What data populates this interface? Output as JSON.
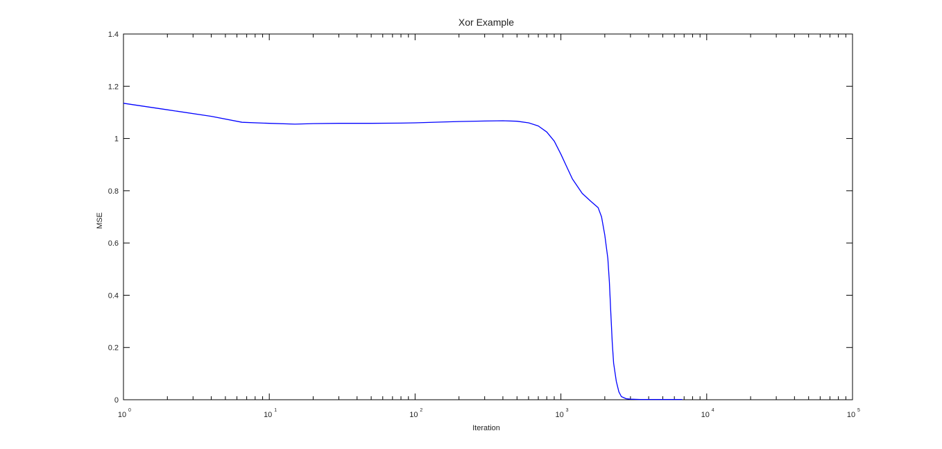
{
  "chart_data": {
    "type": "line",
    "title": "Xor Example",
    "xlabel": "Iteration",
    "ylabel": "MSE",
    "xscale": "log",
    "xlim": [
      1,
      100000
    ],
    "ylim": [
      0,
      1.4
    ],
    "grid": false,
    "legend": "none",
    "x_ticks": [
      {
        "base": "10",
        "exp": "0",
        "value": 1
      },
      {
        "base": "10",
        "exp": "1",
        "value": 10
      },
      {
        "base": "10",
        "exp": "2",
        "value": 100
      },
      {
        "base": "10",
        "exp": "3",
        "value": 1000
      },
      {
        "base": "10",
        "exp": "4",
        "value": 10000
      },
      {
        "base": "10",
        "exp": "5",
        "value": 100000
      }
    ],
    "y_ticks": [
      {
        "label": "0",
        "value": 0
      },
      {
        "label": "0.2",
        "value": 0.2
      },
      {
        "label": "0.4",
        "value": 0.4
      },
      {
        "label": "0.6",
        "value": 0.6
      },
      {
        "label": "0.8",
        "value": 0.8
      },
      {
        "label": "1",
        "value": 1.0
      },
      {
        "label": "1.2",
        "value": 1.2
      },
      {
        "label": "1.4",
        "value": 1.4
      }
    ],
    "series": [
      {
        "color": "#0000ff",
        "x": [
          1,
          2,
          4,
          6.5,
          10,
          15,
          20,
          30,
          50,
          80,
          100,
          150,
          200,
          300,
          400,
          500,
          600,
          700,
          800,
          900,
          1000,
          1100,
          1200,
          1400,
          1600,
          1800,
          1900,
          2000,
          2100,
          2150,
          2200,
          2250,
          2300,
          2400,
          2500,
          2600,
          2800,
          3000,
          3500,
          4000,
          5000,
          6000,
          6800
        ],
        "y": [
          1.135,
          1.11,
          1.085,
          1.062,
          1.058,
          1.055,
          1.057,
          1.058,
          1.058,
          1.059,
          1.06,
          1.063,
          1.065,
          1.067,
          1.068,
          1.066,
          1.06,
          1.048,
          1.025,
          0.99,
          0.94,
          0.89,
          0.845,
          0.79,
          0.76,
          0.735,
          0.7,
          0.63,
          0.54,
          0.45,
          0.33,
          0.22,
          0.14,
          0.07,
          0.03,
          0.012,
          0.004,
          0.002,
          0.001,
          0.001,
          0.001,
          0.001,
          0.001
        ]
      }
    ]
  }
}
